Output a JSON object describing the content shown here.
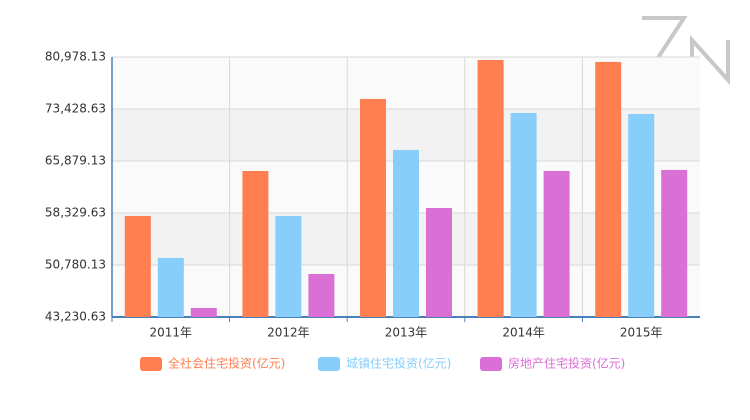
{
  "chart_data": {
    "type": "bar",
    "categories": [
      "2011年",
      "2012年",
      "2013年",
      "2014年",
      "2015年"
    ],
    "series": [
      {
        "name": "全社会住宅投资(亿元)",
        "color": "#ff7f50",
        "values": [
          57900,
          64430,
          74890,
          80550,
          80260
        ]
      },
      {
        "name": "城镇住宅投资(亿元)",
        "color": "#87cefa",
        "values": [
          51800,
          57900,
          67480,
          72850,
          72700
        ]
      },
      {
        "name": "房地产住宅投资(亿元)",
        "color": "#da70d6",
        "values": [
          44540,
          49480,
          59060,
          64430,
          64580
        ]
      }
    ],
    "ylim": [
      43230.63,
      80978.13
    ],
    "yticks": [
      {
        "value": 43230.63,
        "label": "43,230.63"
      },
      {
        "value": 50780.13,
        "label": "50,780.13"
      },
      {
        "value": 58329.63,
        "label": "58,329.63"
      },
      {
        "value": 65879.13,
        "label": "65,879.13"
      },
      {
        "value": 73428.63,
        "label": "73,428.63"
      },
      {
        "value": 80978.13,
        "label": "80,978.13"
      }
    ],
    "grid": true,
    "legend": "bottom"
  }
}
